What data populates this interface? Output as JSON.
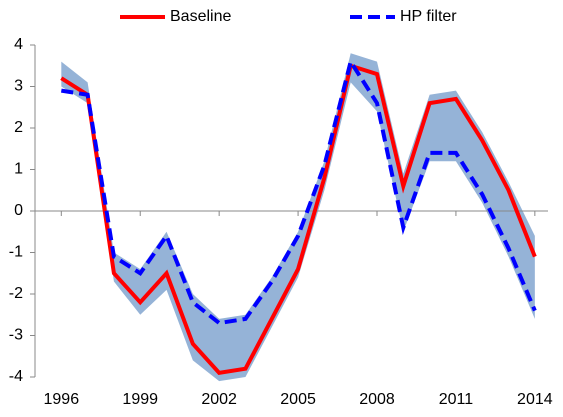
{
  "chart_data": {
    "type": "line",
    "x": [
      1996,
      1997,
      1998,
      1999,
      2000,
      2001,
      2002,
      2003,
      2004,
      2005,
      2006,
      2007,
      2008,
      2009,
      2010,
      2011,
      2012,
      2013,
      2014
    ],
    "series": [
      {
        "name": "Baseline",
        "color": "#ff0000",
        "dashed": false,
        "values": [
          3.2,
          2.8,
          -1.5,
          -2.2,
          -1.5,
          -3.2,
          -3.9,
          -3.8,
          -2.6,
          -1.4,
          0.8,
          3.5,
          3.3,
          0.6,
          2.6,
          2.7,
          1.7,
          0.5,
          -1.1
        ]
      },
      {
        "name": "HP filter",
        "color": "#0000ff",
        "dashed": true,
        "values": [
          2.9,
          2.8,
          -1.1,
          -1.5,
          -0.6,
          -2.2,
          -2.7,
          -2.6,
          -1.7,
          -0.6,
          1.1,
          3.6,
          2.6,
          -0.4,
          1.4,
          1.4,
          0.4,
          -0.9,
          -2.4
        ]
      }
    ],
    "band": {
      "color": "#95b3d7",
      "upper": [
        3.6,
        3.1,
        -1.0,
        -1.4,
        -0.5,
        -2.0,
        -2.6,
        -2.5,
        -1.6,
        -0.5,
        1.2,
        3.8,
        3.6,
        0.9,
        2.8,
        2.9,
        1.9,
        0.7,
        -0.6
      ],
      "lower": [
        3.0,
        2.6,
        -1.7,
        -2.5,
        -1.9,
        -3.6,
        -4.1,
        -4.0,
        -2.8,
        -1.6,
        0.5,
        3.1,
        2.4,
        -0.5,
        1.2,
        1.2,
        0.2,
        -1.1,
        -2.6
      ]
    },
    "xlim": [
      1995,
      2014.5
    ],
    "xticks": [
      1996,
      1999,
      2002,
      2005,
      2008,
      2011,
      2014
    ],
    "ylim": [
      -4,
      4
    ],
    "yticks": [
      -4,
      -3,
      -2,
      -1,
      0,
      1,
      2,
      3,
      4
    ],
    "grid": false,
    "legend": "top"
  }
}
